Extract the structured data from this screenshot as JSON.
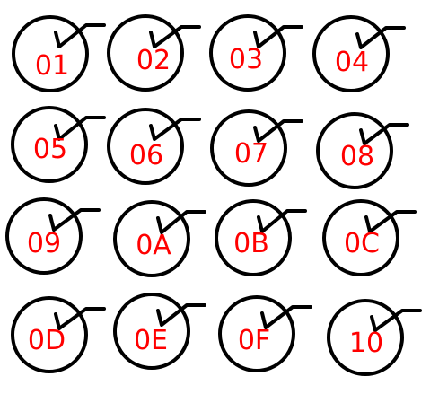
{
  "colors": {
    "stroke": "#000000",
    "label": "#ff0000",
    "background": "#ffffff"
  },
  "items": [
    {
      "id": "01",
      "checked": true
    },
    {
      "id": "02",
      "checked": true
    },
    {
      "id": "03",
      "checked": true
    },
    {
      "id": "04",
      "checked": true
    },
    {
      "id": "05",
      "checked": true
    },
    {
      "id": "06",
      "checked": true
    },
    {
      "id": "07",
      "checked": true
    },
    {
      "id": "08",
      "checked": true
    },
    {
      "id": "09",
      "checked": true
    },
    {
      "id": "0A",
      "checked": true
    },
    {
      "id": "0B",
      "checked": true
    },
    {
      "id": "0C",
      "checked": true
    },
    {
      "id": "0D",
      "checked": true
    },
    {
      "id": "0E",
      "checked": true
    },
    {
      "id": "0F",
      "checked": true
    },
    {
      "id": "10",
      "checked": true
    }
  ]
}
